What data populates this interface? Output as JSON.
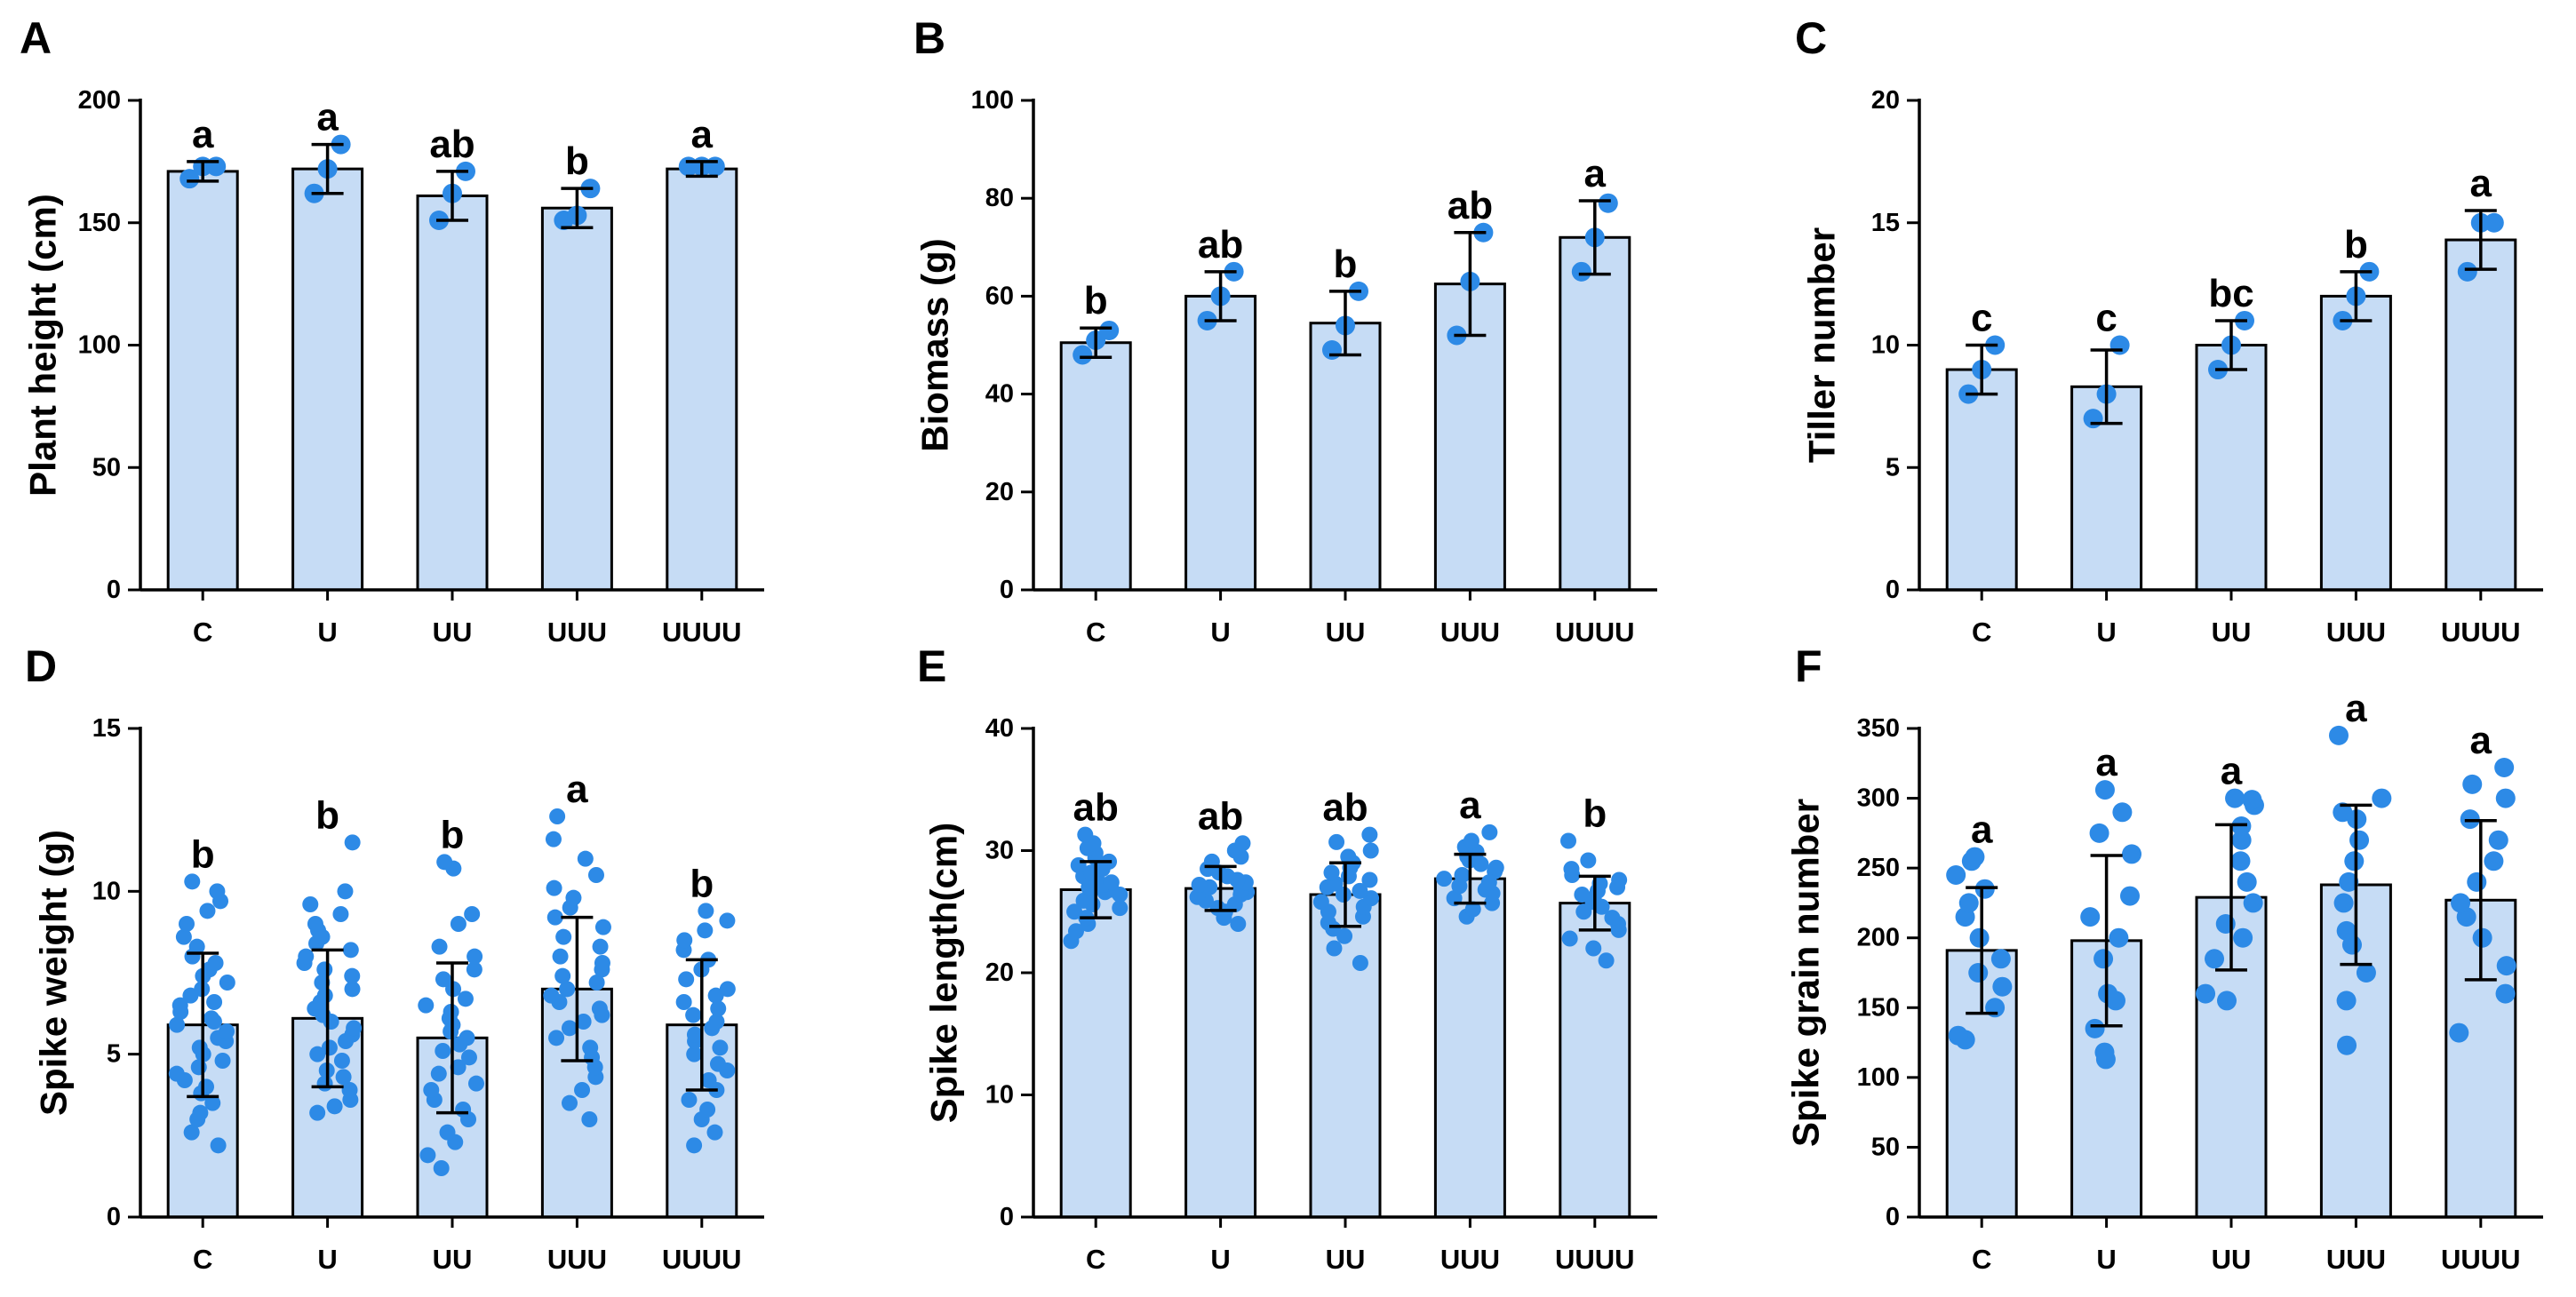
{
  "colors": {
    "bar_fill": "#c6dcf5",
    "bar_stroke": "#000000",
    "point": "#2d8ae6",
    "error_bar": "#000000"
  },
  "chart_data": [
    {
      "panel": "A",
      "type": "bar",
      "ylabel": "Plant height (cm)",
      "ylim": [
        0,
        200
      ],
      "yticks": [
        0,
        50,
        100,
        150,
        200
      ],
      "categories": [
        "C",
        "U",
        "UU",
        "UUU",
        "UUUU"
      ],
      "values": [
        171,
        172,
        161,
        156,
        172
      ],
      "sd": [
        4,
        10,
        10,
        8,
        3
      ],
      "significance": [
        "a",
        "a",
        "ab",
        "b",
        "a"
      ],
      "points": [
        [
          168,
          173,
          173
        ],
        [
          162,
          172,
          182
        ],
        [
          151,
          162,
          171
        ],
        [
          151,
          153,
          164
        ],
        [
          173,
          173,
          173
        ]
      ]
    },
    {
      "panel": "B",
      "type": "bar",
      "ylabel": "Biomass (g)",
      "ylim": [
        0,
        100
      ],
      "yticks": [
        0,
        20,
        40,
        60,
        80,
        100
      ],
      "categories": [
        "C",
        "U",
        "UU",
        "UUU",
        "UUUU"
      ],
      "values": [
        50.5,
        60,
        54.5,
        62.5,
        72
      ],
      "sd": [
        3,
        5,
        6.5,
        10.5,
        7.5
      ],
      "significance": [
        "b",
        "ab",
        "b",
        "ab",
        "a"
      ],
      "points": [
        [
          48,
          51,
          53
        ],
        [
          55,
          60,
          65
        ],
        [
          49,
          54,
          61
        ],
        [
          52,
          63,
          73
        ],
        [
          65,
          72,
          79
        ]
      ]
    },
    {
      "panel": "C",
      "type": "bar",
      "ylabel": "Tiller number",
      "ylim": [
        0,
        20
      ],
      "yticks": [
        0,
        5,
        10,
        15,
        20
      ],
      "categories": [
        "C",
        "U",
        "UU",
        "UUU",
        "UUUU"
      ],
      "values": [
        9,
        8.3,
        10,
        12,
        14.3
      ],
      "sd": [
        1,
        1.5,
        1,
        1,
        1.2
      ],
      "significance": [
        "c",
        "c",
        "bc",
        "b",
        "a"
      ],
      "points": [
        [
          8,
          9,
          10
        ],
        [
          7,
          8,
          10
        ],
        [
          9,
          10,
          11
        ],
        [
          11,
          12,
          13
        ],
        [
          13,
          15,
          15
        ]
      ]
    },
    {
      "panel": "D",
      "type": "bar",
      "ylabel": "Spike weight (g)",
      "ylim": [
        0,
        15
      ],
      "yticks": [
        0,
        5,
        10,
        15
      ],
      "categories": [
        "C",
        "U",
        "UU",
        "UUU",
        "UUUU"
      ],
      "values": [
        5.9,
        6.1,
        5.5,
        7.0,
        5.9
      ],
      "sd": [
        2.2,
        2.1,
        2.3,
        2.2,
        2.0
      ],
      "significance": [
        "b",
        "b",
        "b",
        "a",
        "b"
      ],
      "points": [
        [
          2.2,
          2.6,
          3.0,
          3.2,
          3.5,
          3.8,
          4.0,
          4.2,
          4.4,
          4.6,
          4.8,
          5.0,
          5.2,
          5.4,
          5.5,
          5.7,
          5.9,
          6.0,
          6.1,
          6.3,
          6.5,
          6.6,
          6.8,
          7.0,
          7.2,
          7.4,
          7.6,
          7.8,
          8.0,
          8.3,
          8.6,
          9.0,
          9.4,
          9.7,
          10.0,
          10.3
        ],
        [
          3.2,
          3.4,
          3.6,
          3.9,
          4.1,
          4.3,
          4.5,
          4.8,
          5.0,
          5.2,
          5.4,
          5.6,
          5.8,
          6.0,
          6.2,
          6.4,
          6.6,
          6.8,
          7.0,
          7.2,
          7.4,
          7.6,
          7.8,
          8.0,
          8.2,
          8.4,
          8.6,
          8.8,
          9.0,
          9.3,
          9.6,
          10.0,
          11.5
        ],
        [
          1.5,
          1.9,
          2.3,
          2.6,
          3.0,
          3.3,
          3.6,
          3.9,
          4.1,
          4.4,
          4.6,
          4.9,
          5.1,
          5.3,
          5.5,
          5.7,
          5.9,
          6.1,
          6.3,
          6.5,
          6.7,
          7.0,
          7.3,
          7.6,
          8.0,
          8.3,
          9.0,
          9.3,
          10.7,
          10.9
        ],
        [
          3.0,
          3.5,
          3.9,
          4.3,
          4.6,
          4.9,
          5.2,
          5.5,
          5.8,
          6.0,
          6.2,
          6.4,
          6.6,
          6.8,
          7.0,
          7.2,
          7.4,
          7.6,
          7.8,
          8.0,
          8.3,
          8.6,
          8.9,
          9.2,
          9.5,
          9.8,
          10.1,
          10.5,
          11.0,
          11.6,
          12.3
        ],
        [
          2.2,
          2.6,
          3.0,
          3.3,
          3.6,
          3.9,
          4.2,
          4.5,
          4.7,
          5.0,
          5.2,
          5.4,
          5.6,
          5.8,
          6.0,
          6.2,
          6.4,
          6.6,
          6.8,
          7.0,
          7.3,
          7.6,
          7.9,
          8.2,
          8.5,
          8.8,
          9.1,
          9.4
        ]
      ]
    },
    {
      "panel": "E",
      "type": "bar",
      "ylabel": "Spike length(cm)",
      "ylim": [
        0,
        40
      ],
      "yticks": [
        0,
        10,
        20,
        30,
        40
      ],
      "categories": [
        "C",
        "U",
        "UU",
        "UUU",
        "UUUU"
      ],
      "values": [
        26.8,
        26.9,
        26.4,
        27.7,
        25.7
      ],
      "sd": [
        2.3,
        1.8,
        2.6,
        2.0,
        2.2
      ],
      "significance": [
        "ab",
        "ab",
        "ab",
        "a",
        "b"
      ],
      "points": [
        [
          22.6,
          23.4,
          24.0,
          24.5,
          25.0,
          25.3,
          25.6,
          25.9,
          26.2,
          26.4,
          26.6,
          26.8,
          27.0,
          27.2,
          27.4,
          27.6,
          27.9,
          28.2,
          28.5,
          28.8,
          29.1,
          29.4,
          29.8,
          30.2,
          30.6,
          31.3
        ],
        [
          24.0,
          24.5,
          25.0,
          25.3,
          25.6,
          25.9,
          26.2,
          26.4,
          26.6,
          26.8,
          27.0,
          27.2,
          27.4,
          27.6,
          27.9,
          28.2,
          28.5,
          28.8,
          29.1,
          29.5,
          30.0,
          30.6
        ],
        [
          20.8,
          22.0,
          23.0,
          23.6,
          24.1,
          24.6,
          25.0,
          25.4,
          25.8,
          26.1,
          26.4,
          26.7,
          27.0,
          27.3,
          27.6,
          27.9,
          28.2,
          28.6,
          29.0,
          29.5,
          30.0,
          30.7,
          31.3
        ],
        [
          24.6,
          25.2,
          25.7,
          26.1,
          26.5,
          26.8,
          27.1,
          27.4,
          27.7,
          28.0,
          28.3,
          28.6,
          28.9,
          29.2,
          29.5,
          29.9,
          30.3,
          30.8,
          31.5
        ],
        [
          21.0,
          22.0,
          22.8,
          23.5,
          24.0,
          24.5,
          25.0,
          25.4,
          25.8,
          26.1,
          26.4,
          26.7,
          27.0,
          27.3,
          27.6,
          28.0,
          28.5,
          29.2,
          30.8
        ]
      ]
    },
    {
      "panel": "F",
      "type": "bar",
      "ylabel": "Spike grain number",
      "ylim": [
        0,
        350
      ],
      "yticks": [
        0,
        50,
        100,
        150,
        200,
        250,
        300,
        350
      ],
      "categories": [
        "C",
        "U",
        "UU",
        "UUU",
        "UUUU"
      ],
      "values": [
        191,
        198,
        229,
        238,
        227
      ],
      "sd": [
        45,
        61,
        52,
        57,
        57
      ],
      "significance": [
        "a",
        "a",
        "a",
        "a",
        "a"
      ],
      "points": [
        [
          127,
          130,
          150,
          165,
          175,
          185,
          200,
          215,
          225,
          235,
          245,
          255,
          258
        ],
        [
          113,
          118,
          135,
          155,
          160,
          185,
          200,
          215,
          230,
          260,
          275,
          290,
          306
        ],
        [
          155,
          160,
          185,
          200,
          210,
          225,
          240,
          255,
          270,
          280,
          295,
          299,
          300
        ],
        [
          123,
          155,
          175,
          195,
          205,
          225,
          240,
          255,
          270,
          285,
          290,
          300,
          345
        ],
        [
          132,
          160,
          180,
          200,
          215,
          225,
          240,
          255,
          270,
          285,
          300,
          310,
          322
        ]
      ]
    }
  ]
}
